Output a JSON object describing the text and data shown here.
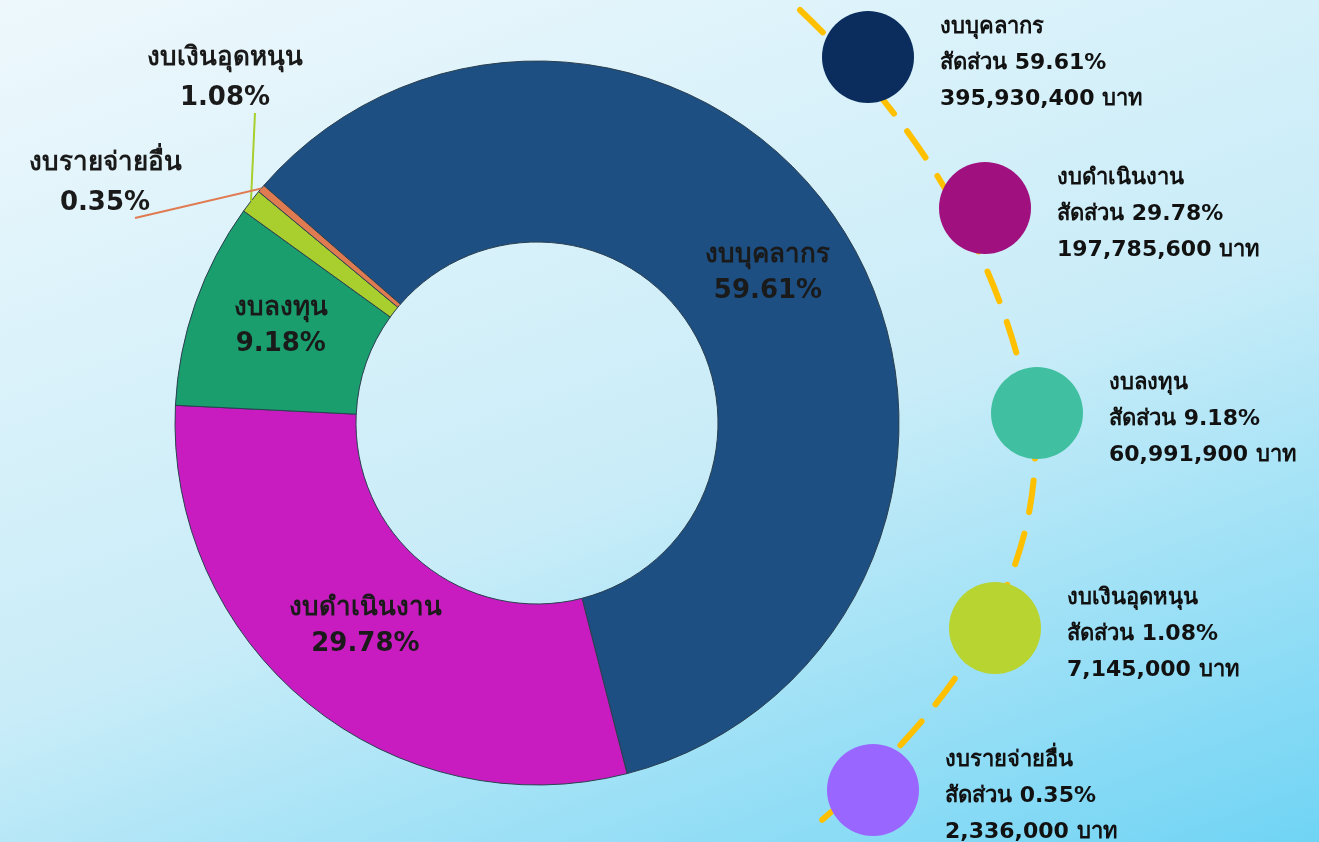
{
  "chart_data": [
    {
      "type": "donut",
      "categories": [
        "งบบุคลากร",
        "งบดำเนินงาน",
        "งบลงทุน",
        "งบเงินอุดหนุน",
        "งบรายจ่ายอื่น"
      ],
      "values": [
        59.61,
        29.78,
        9.18,
        1.08,
        0.35
      ],
      "value_labels": [
        "59.61%",
        "29.78%",
        "9.18%",
        "1.08%",
        "0.35%"
      ],
      "colors": [
        "#1d4f82",
        "#c81cc0",
        "#1a9e6e",
        "#a8cf2e",
        "#e07a50"
      ],
      "legend": false
    },
    {
      "type": "other",
      "colors": [
        "#0a2d5e",
        "#a0107f",
        "#40c0a0",
        "#b8d430",
        "#9966ff"
      ],
      "annotations": [
        "งบบุคลากร",
        "สัดส่วน 59.61%",
        "395,930,400 บาท",
        "งบดำเนินงาน",
        "สัดส่วน 29.78%",
        "197,785,600 บาท",
        "งบลงทุน",
        "สัดส่วน 9.18%",
        "60,991,900 บาท",
        "งบเงินอุดหนุน",
        "สัดส่วน 1.08%",
        "7,145,000 บาท",
        "งบรายจ่ายอื่น",
        "สัดส่วน 0.35%",
        "2,336,000 บาท"
      ]
    }
  ]
}
